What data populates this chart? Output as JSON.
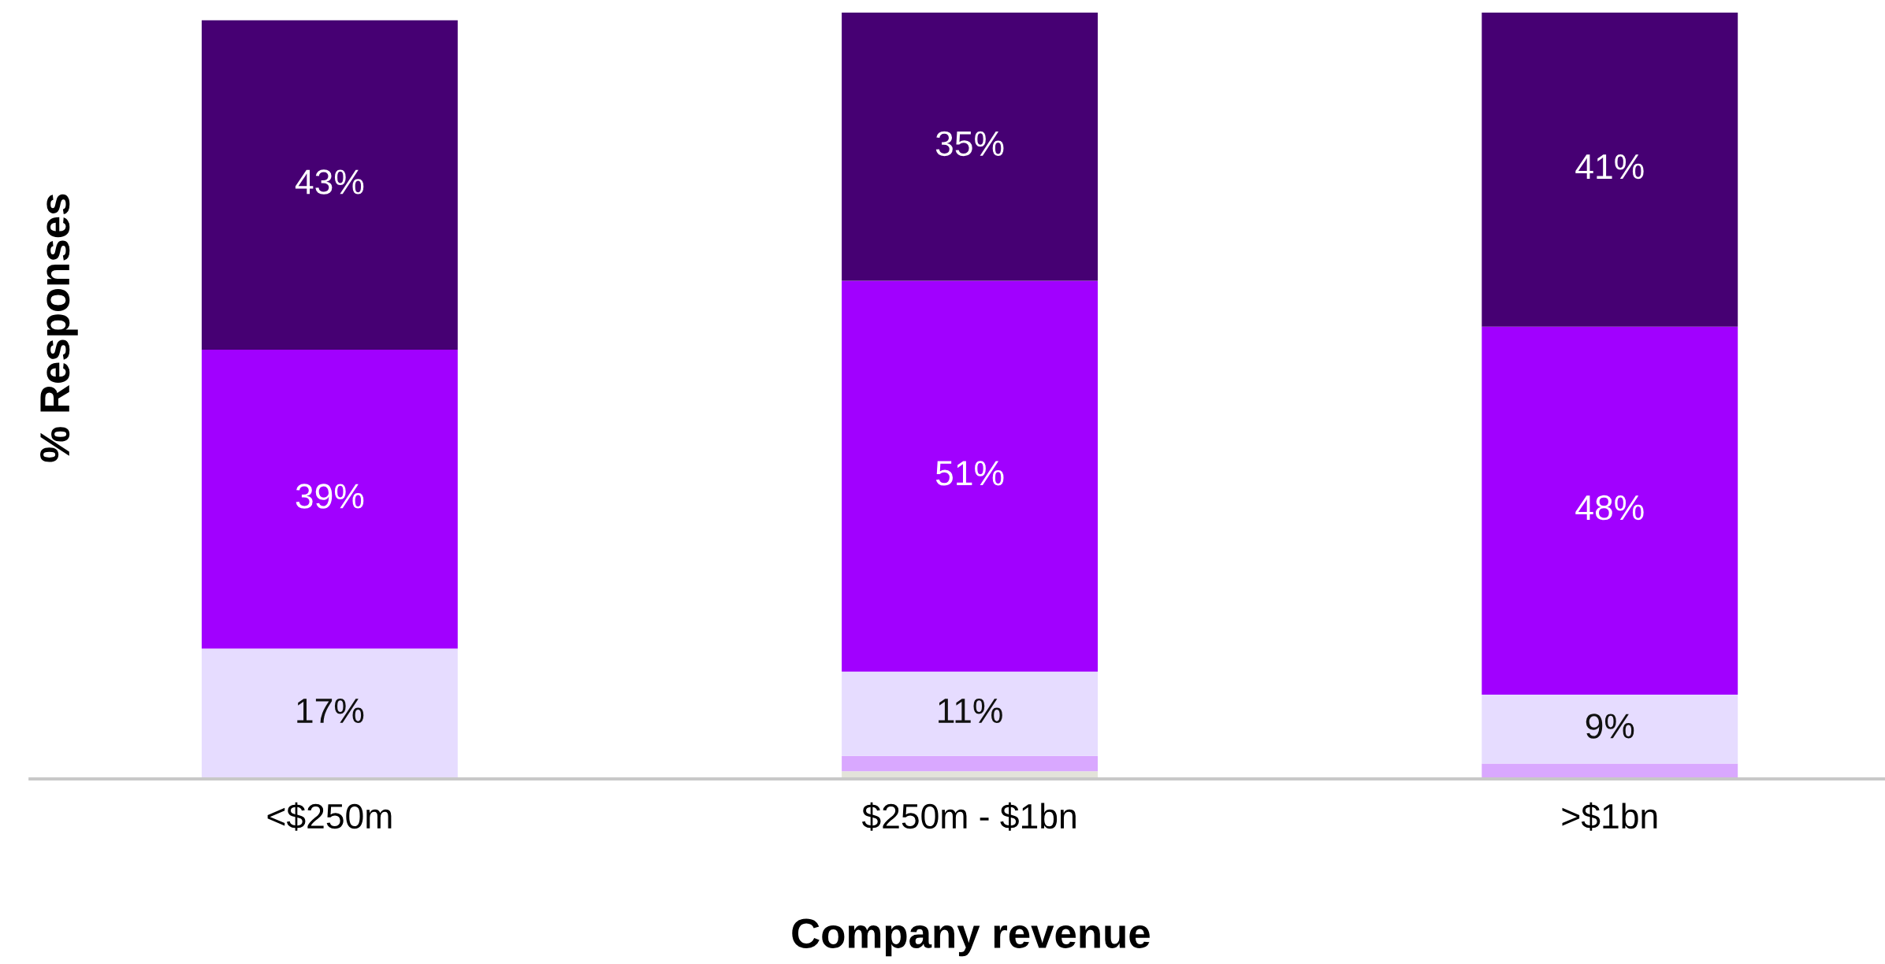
{
  "chart_data": {
    "type": "bar",
    "stacked": true,
    "xlabel": "Company revenue",
    "ylabel": "% Responses",
    "categories": [
      "<$250m",
      "$250m - $1bn",
      ">$1bn"
    ],
    "ylim": [
      0,
      100
    ],
    "tick_labels": "x",
    "grid": false,
    "legend": false,
    "series": [
      {
        "color": "#e3e3da",
        "values": [
          0,
          1,
          0
        ],
        "value_labels": [
          null,
          null,
          null
        ]
      },
      {
        "color": "#d9a8ff",
        "values": [
          0,
          2,
          2
        ],
        "value_labels": [
          null,
          null,
          null
        ]
      },
      {
        "color": "#e6dcff",
        "values": [
          17,
          11,
          9
        ],
        "value_labels": [
          "17%",
          "11%",
          "9%"
        ]
      },
      {
        "color": "#a100ff",
        "values": [
          39,
          51,
          48
        ],
        "value_labels": [
          "39%",
          "51%",
          "48%"
        ]
      },
      {
        "color": "#460073",
        "values": [
          43,
          35,
          41
        ],
        "value_labels": [
          "43%",
          "35%",
          "41%"
        ]
      }
    ]
  }
}
